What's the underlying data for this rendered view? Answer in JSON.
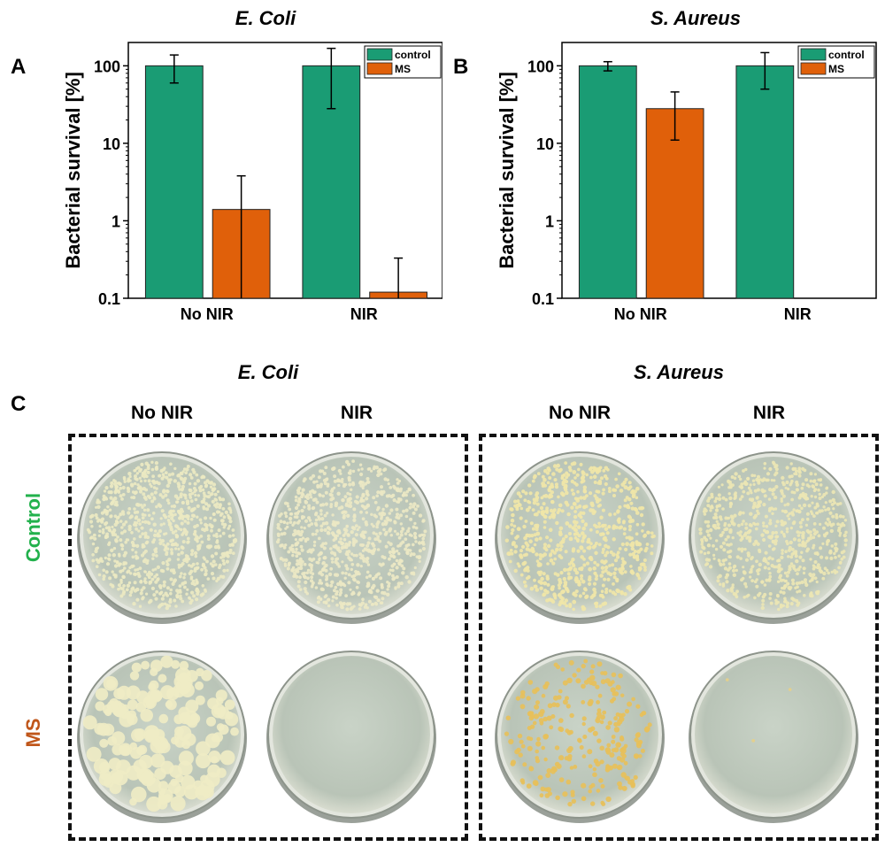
{
  "panels": {
    "a_letter": "A",
    "b_letter": "B",
    "c_letter": "C"
  },
  "chart_data": [
    {
      "type": "bar",
      "title": "E. Coli",
      "ylabel": "Bacterial survival [%]",
      "xlabel": "",
      "yscale": "log",
      "ylim": [
        0.1,
        200
      ],
      "yticks": [
        0.1,
        1,
        10,
        100
      ],
      "ytick_labels": [
        "0.1",
        "1",
        "10",
        "100"
      ],
      "categories": [
        "No NIR",
        "NIR"
      ],
      "series": [
        {
          "name": "control",
          "color": "#1a9c74",
          "values": [
            100,
            100
          ],
          "err_low": [
            60,
            28
          ],
          "err_high": [
            138,
            168
          ]
        },
        {
          "name": "MS",
          "color": "#e0600a",
          "values": [
            1.4,
            0.12
          ],
          "err_low": [
            0.1,
            0.1
          ],
          "err_high": [
            3.8,
            0.33
          ]
        }
      ],
      "legend": "top-right",
      "grid": false
    },
    {
      "type": "bar",
      "title": "S. Aureus",
      "ylabel": "Bacterial survival [%]",
      "xlabel": "",
      "yscale": "log",
      "ylim": [
        0.1,
        200
      ],
      "yticks": [
        0.1,
        1,
        10,
        100
      ],
      "ytick_labels": [
        "0.1",
        "1",
        "10",
        "100"
      ],
      "categories": [
        "No NIR",
        "NIR"
      ],
      "series": [
        {
          "name": "control",
          "color": "#1a9c74",
          "values": [
            100,
            100
          ],
          "err_low": [
            86,
            50
          ],
          "err_high": [
            113,
            148
          ]
        },
        {
          "name": "MS",
          "color": "#e0600a",
          "values": [
            28,
            null
          ],
          "err_low": [
            11,
            null
          ],
          "err_high": [
            46,
            null
          ]
        }
      ],
      "legend": "top-right",
      "grid": false
    }
  ],
  "photos": {
    "ecoli_title": "E. Coli",
    "saureus_title": "S. Aureus",
    "col_no_nir_1": "No NIR",
    "col_nir_1": "NIR",
    "col_no_nir_2": "No NIR",
    "col_nir_2": "NIR",
    "row_control": "Control",
    "row_ms": "MS",
    "row_control_color": "#22b14c",
    "row_ms_color": "#c0561a"
  }
}
